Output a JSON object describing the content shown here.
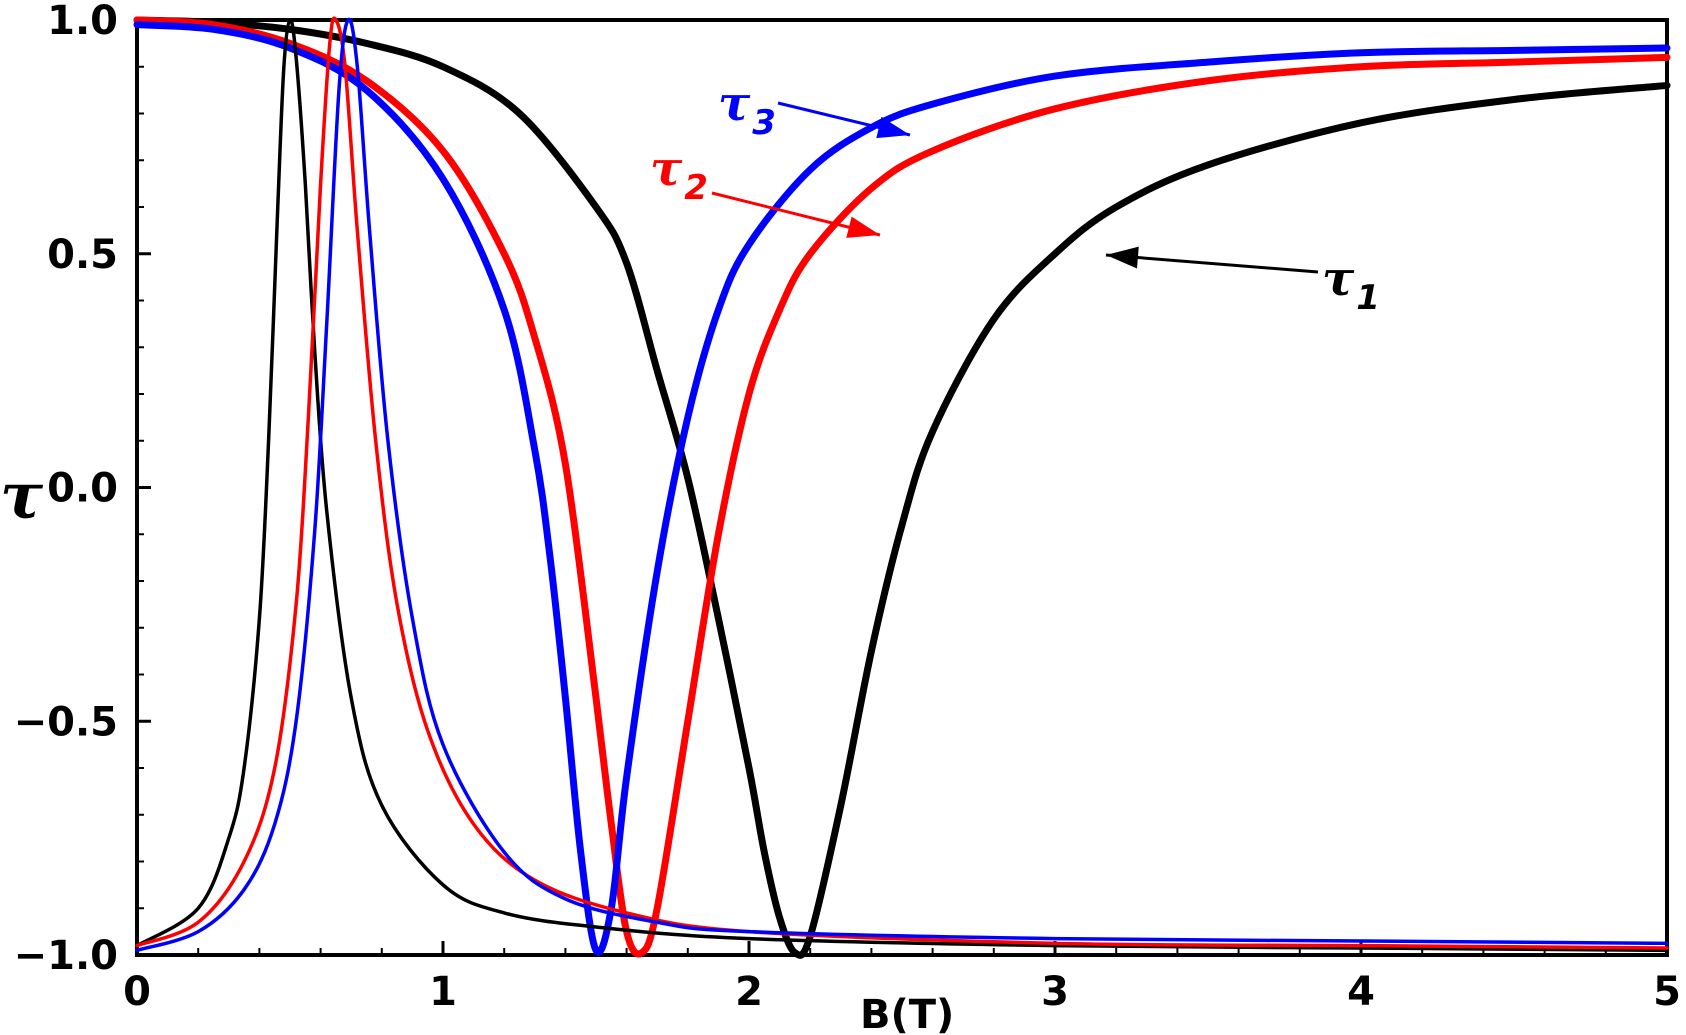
{
  "chart_data": {
    "type": "line",
    "title": "",
    "xlabel": "B(T)",
    "ylabel": "τ",
    "xlim": [
      0,
      5
    ],
    "ylim": [
      -1.0,
      1.0
    ],
    "x_ticks": [
      "0",
      "1",
      "2",
      "3",
      "4",
      "5"
    ],
    "y_ticks": [
      "−1.0",
      "−0.5",
      "0.0",
      "0.5",
      "1.0"
    ],
    "grid": false,
    "annotations": [
      {
        "base": "τ",
        "sub": "1",
        "color": "#000000"
      },
      {
        "base": "τ",
        "sub": "2",
        "color": "#ff0000"
      },
      {
        "base": "τ",
        "sub": "3",
        "color": "#0000ff"
      }
    ],
    "series": [
      {
        "name": "τ1",
        "color": "#000000",
        "style": "thick",
        "x": [
          0,
          0.25,
          0.5,
          0.75,
          1.0,
          1.25,
          1.5,
          1.6,
          1.7,
          1.8,
          1.9,
          2.0,
          2.05,
          2.1,
          2.15,
          2.2,
          2.3,
          2.4,
          2.5,
          2.6,
          2.8,
          3.0,
          3.2,
          3.5,
          4.0,
          4.5,
          5.0
        ],
        "y": [
          1.0,
          0.995,
          0.98,
          0.95,
          0.9,
          0.8,
          0.6,
          0.48,
          0.25,
          0.02,
          -0.28,
          -0.6,
          -0.78,
          -0.92,
          -0.995,
          -0.96,
          -0.68,
          -0.35,
          -0.08,
          0.12,
          0.36,
          0.5,
          0.6,
          0.69,
          0.78,
          0.83,
          0.86
        ]
      },
      {
        "name": "τ2",
        "color": "#ff0000",
        "style": "thick",
        "x": [
          0,
          0.25,
          0.5,
          0.75,
          1.0,
          1.2,
          1.3,
          1.4,
          1.5,
          1.55,
          1.6,
          1.65,
          1.7,
          1.8,
          1.9,
          2.0,
          2.1,
          2.2,
          2.4,
          2.6,
          3.0,
          3.5,
          4.0,
          4.5,
          5.0
        ],
        "y": [
          1.0,
          0.99,
          0.95,
          0.87,
          0.72,
          0.5,
          0.32,
          0.05,
          -0.45,
          -0.72,
          -0.95,
          -0.995,
          -0.9,
          -0.5,
          -0.1,
          0.2,
          0.38,
          0.5,
          0.64,
          0.72,
          0.81,
          0.87,
          0.9,
          0.91,
          0.92
        ]
      },
      {
        "name": "τ3",
        "color": "#0000ff",
        "style": "thick",
        "x": [
          0,
          0.25,
          0.5,
          0.75,
          1.0,
          1.2,
          1.3,
          1.35,
          1.4,
          1.45,
          1.5,
          1.55,
          1.6,
          1.7,
          1.8,
          1.9,
          2.0,
          2.2,
          2.4,
          2.6,
          3.0,
          3.5,
          4.0,
          4.5,
          5.0
        ],
        "y": [
          0.99,
          0.98,
          0.94,
          0.85,
          0.66,
          0.38,
          0.08,
          -0.15,
          -0.45,
          -0.78,
          -0.99,
          -0.9,
          -0.62,
          -0.18,
          0.15,
          0.38,
          0.52,
          0.68,
          0.77,
          0.82,
          0.88,
          0.91,
          0.93,
          0.935,
          0.94
        ]
      },
      {
        "name": "",
        "color": "#000000",
        "style": "thin",
        "x": [
          0,
          0.2,
          0.3,
          0.35,
          0.4,
          0.43,
          0.46,
          0.48,
          0.5,
          0.52,
          0.55,
          0.58,
          0.62,
          0.7,
          0.8,
          1.0,
          1.2,
          1.5,
          2.0,
          3.0,
          4.0,
          5.0
        ],
        "y": [
          -0.98,
          -0.9,
          -0.75,
          -0.6,
          -0.28,
          0.1,
          0.6,
          0.9,
          1.0,
          0.92,
          0.65,
          0.3,
          -0.05,
          -0.45,
          -0.68,
          -0.85,
          -0.91,
          -0.94,
          -0.965,
          -0.98,
          -0.985,
          -0.99
        ]
      },
      {
        "name": "",
        "color": "#ff0000",
        "style": "thin",
        "x": [
          0,
          0.2,
          0.35,
          0.45,
          0.52,
          0.56,
          0.6,
          0.63,
          0.65,
          0.68,
          0.72,
          0.78,
          0.85,
          0.95,
          1.1,
          1.3,
          1.6,
          2.0,
          3.0,
          4.0,
          5.0
        ],
        "y": [
          -0.98,
          -0.93,
          -0.8,
          -0.6,
          -0.25,
          0.15,
          0.65,
          0.95,
          1.0,
          0.9,
          0.55,
          0.1,
          -0.25,
          -0.52,
          -0.72,
          -0.84,
          -0.91,
          -0.95,
          -0.975,
          -0.98,
          -0.985
        ]
      },
      {
        "name": "",
        "color": "#0000ff",
        "style": "thin",
        "x": [
          0,
          0.2,
          0.35,
          0.45,
          0.52,
          0.58,
          0.62,
          0.66,
          0.69,
          0.72,
          0.76,
          0.82,
          0.9,
          1.0,
          1.2,
          1.4,
          1.7,
          2.0,
          3.0,
          4.0,
          5.0
        ],
        "y": [
          -0.99,
          -0.95,
          -0.86,
          -0.72,
          -0.5,
          -0.1,
          0.35,
          0.85,
          1.0,
          0.9,
          0.55,
          0.1,
          -0.28,
          -0.55,
          -0.78,
          -0.88,
          -0.93,
          -0.95,
          -0.965,
          -0.97,
          -0.975
        ]
      }
    ]
  }
}
